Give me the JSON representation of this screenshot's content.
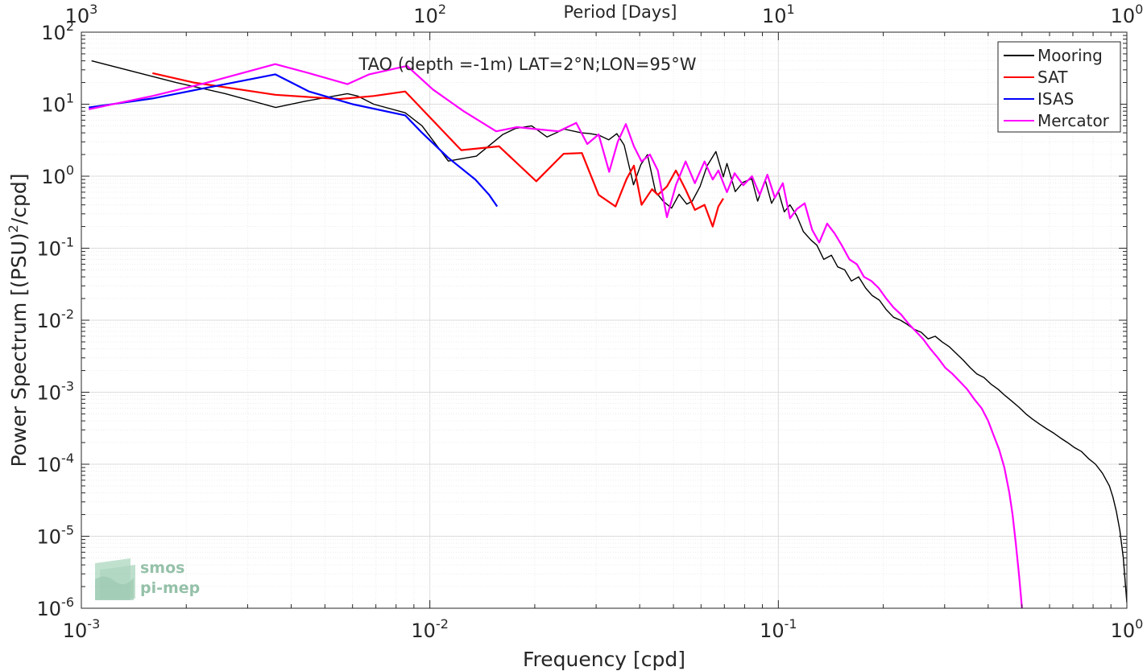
{
  "chart_data": {
    "type": "line",
    "title": "TAO (depth =-1m) LAT=2°N;LON=95°W",
    "xlabel": "Frequency [cpd]",
    "ylabel_main": "Power Spectrum [(PSU)",
    "ylabel_sup": "2",
    "ylabel_end": "/cpd]",
    "top_axis_label": "Period [Days]",
    "x_scale": "log",
    "y_scale": "log",
    "xlim": [
      0.001,
      1
    ],
    "ylim": [
      1e-06,
      100
    ],
    "grid": true,
    "legend_position": "top-right",
    "x_ticks": [
      {
        "value": 0.001,
        "base": "10",
        "exp": "-3"
      },
      {
        "value": 0.01,
        "base": "10",
        "exp": "-2"
      },
      {
        "value": 0.1,
        "base": "10",
        "exp": "-1"
      },
      {
        "value": 1,
        "base": "10",
        "exp": "0"
      }
    ],
    "y_ticks": [
      {
        "value": 1e-06,
        "base": "10",
        "exp": "-6"
      },
      {
        "value": 1e-05,
        "base": "10",
        "exp": "-5"
      },
      {
        "value": 0.0001,
        "base": "10",
        "exp": "-4"
      },
      {
        "value": 0.001,
        "base": "10",
        "exp": "-3"
      },
      {
        "value": 0.01,
        "base": "10",
        "exp": "-2"
      },
      {
        "value": 0.1,
        "base": "10",
        "exp": "-1"
      },
      {
        "value": 1,
        "base": "10",
        "exp": "0"
      },
      {
        "value": 10,
        "base": "10",
        "exp": "1"
      },
      {
        "value": 100,
        "base": "10",
        "exp": "2"
      }
    ],
    "top_ticks": [
      {
        "value": 0.001,
        "base": "10",
        "exp": "3"
      },
      {
        "value": 0.01,
        "base": "10",
        "exp": "2"
      },
      {
        "value": 0.1,
        "base": "10",
        "exp": "1"
      },
      {
        "value": 1,
        "base": "10",
        "exp": "0"
      }
    ],
    "series": [
      {
        "name": "Mooring",
        "color": "#000000",
        "x": [
          0.00107,
          0.00187,
          0.00259,
          0.00361,
          0.00439,
          0.0058,
          0.0062,
          0.0069,
          0.0085,
          0.0095,
          0.0113,
          0.0136,
          0.0162,
          0.0176,
          0.0196,
          0.0217,
          0.0243,
          0.0272,
          0.0288,
          0.0306,
          0.0326,
          0.0344,
          0.0361,
          0.0384,
          0.0403,
          0.0421,
          0.0444,
          0.0467,
          0.0494,
          0.0519,
          0.0546,
          0.0566,
          0.0596,
          0.0625,
          0.0662,
          0.0695,
          0.0712,
          0.0752,
          0.0791,
          0.0839,
          0.0872,
          0.0917,
          0.0956,
          0.1,
          0.104,
          0.108,
          0.113,
          0.118,
          0.124,
          0.129,
          0.135,
          0.142,
          0.148,
          0.155,
          0.162,
          0.17,
          0.178,
          0.186,
          0.195,
          0.204,
          0.214,
          0.224,
          0.234,
          0.245,
          0.257,
          0.269,
          0.282,
          0.295,
          0.309,
          0.323,
          0.339,
          0.355,
          0.371,
          0.389,
          0.407,
          0.427,
          0.447,
          0.468,
          0.49,
          0.513,
          0.537,
          0.562,
          0.589,
          0.617,
          0.646,
          0.676,
          0.708,
          0.741,
          0.776,
          0.813,
          0.851,
          0.891,
          0.912,
          0.933,
          0.955,
          0.977,
          0.988,
          1.0
        ],
        "y": [
          40,
          20,
          14,
          9,
          11,
          14,
          13,
          10,
          7.6,
          5,
          1.62,
          1.9,
          3.8,
          4.6,
          5.0,
          3.5,
          4.5,
          4.0,
          3.9,
          3.7,
          3.2,
          3.9,
          2.7,
          0.76,
          1.45,
          2.0,
          0.61,
          0.45,
          0.36,
          0.56,
          0.41,
          0.45,
          0.72,
          1.4,
          2.2,
          0.98,
          1.5,
          0.61,
          0.82,
          0.92,
          0.45,
          0.88,
          0.42,
          0.62,
          0.32,
          0.4,
          0.28,
          0.17,
          0.13,
          0.11,
          0.07,
          0.08,
          0.055,
          0.05,
          0.035,
          0.04,
          0.028,
          0.022,
          0.019,
          0.014,
          0.011,
          0.01,
          0.0088,
          0.0075,
          0.0068,
          0.0055,
          0.006,
          0.005,
          0.0043,
          0.0035,
          0.0028,
          0.0022,
          0.0018,
          0.0016,
          0.0013,
          0.0011,
          0.0009,
          0.00075,
          0.00062,
          0.0005,
          0.00042,
          0.00036,
          0.00031,
          0.00027,
          0.00023,
          0.0002,
          0.00017,
          0.00015,
          0.00012,
          0.0001,
          7.5e-05,
          5e-05,
          3.5e-05,
          2.2e-05,
          1.2e-05,
          5e-06,
          2.5e-06,
          1.2e-06
        ]
      },
      {
        "name": "SAT",
        "color": "#ff0000",
        "x": [
          0.0016,
          0.0021,
          0.0036,
          0.0055,
          0.0069,
          0.0085,
          0.0123,
          0.0158,
          0.0202,
          0.0242,
          0.0273,
          0.0305,
          0.0341,
          0.0367,
          0.0385,
          0.0405,
          0.0434,
          0.0451,
          0.0479,
          0.0508,
          0.0542,
          0.0576,
          0.0614,
          0.0648,
          0.0673,
          0.0695
        ],
        "y": [
          27,
          20,
          13.5,
          11.8,
          13,
          15,
          2.3,
          2.6,
          0.85,
          2.05,
          2.1,
          0.55,
          0.38,
          0.92,
          1.4,
          0.4,
          0.66,
          0.55,
          0.72,
          1.2,
          0.65,
          0.34,
          0.4,
          0.2,
          0.38,
          0.49
        ]
      },
      {
        "name": "ISAS",
        "color": "#0000ff",
        "x": [
          0.00105,
          0.0016,
          0.0023,
          0.0036,
          0.0045,
          0.006,
          0.0085,
          0.0095,
          0.0113,
          0.0135,
          0.0148,
          0.0156
        ],
        "y": [
          9,
          12,
          17,
          26,
          15,
          10,
          7,
          4,
          1.8,
          0.9,
          0.55,
          0.38
        ]
      },
      {
        "name": "Mercator",
        "color": "#ff00ff",
        "x": [
          0.00105,
          0.0016,
          0.0023,
          0.0036,
          0.0045,
          0.0058,
          0.0067,
          0.0086,
          0.0102,
          0.0125,
          0.0155,
          0.0178,
          0.0202,
          0.0234,
          0.0263,
          0.0283,
          0.0305,
          0.0327,
          0.0346,
          0.0365,
          0.0385,
          0.0405,
          0.0428,
          0.0451,
          0.0479,
          0.0508,
          0.0542,
          0.0576,
          0.0614,
          0.0648,
          0.0673,
          0.0712,
          0.0749,
          0.0793,
          0.084,
          0.0884,
          0.093,
          0.0977,
          0.103,
          0.108,
          0.113,
          0.119,
          0.125,
          0.131,
          0.138,
          0.145,
          0.152,
          0.16,
          0.168,
          0.176,
          0.185,
          0.194,
          0.204,
          0.214,
          0.225,
          0.236,
          0.248,
          0.26,
          0.273,
          0.287,
          0.301,
          0.316,
          0.332,
          0.348,
          0.365,
          0.383,
          0.4,
          0.415,
          0.43,
          0.445,
          0.46,
          0.47,
          0.48,
          0.49,
          0.5
        ],
        "y": [
          8.5,
          13,
          20,
          36,
          27,
          19,
          26,
          34,
          16,
          8,
          4.2,
          4.8,
          4.5,
          4.2,
          5.5,
          2.8,
          3.8,
          1.15,
          3.0,
          5.3,
          2.6,
          1.6,
          2.0,
          1.2,
          0.27,
          0.75,
          1.6,
          0.8,
          1.6,
          0.9,
          1.2,
          0.6,
          1.1,
          0.75,
          1.0,
          0.55,
          1.05,
          0.5,
          0.8,
          0.26,
          0.35,
          0.42,
          0.18,
          0.12,
          0.22,
          0.16,
          0.11,
          0.07,
          0.06,
          0.04,
          0.035,
          0.028,
          0.02,
          0.015,
          0.012,
          0.009,
          0.007,
          0.0055,
          0.004,
          0.003,
          0.0022,
          0.0018,
          0.0014,
          0.0011,
          0.0008,
          0.0006,
          0.0004,
          0.00025,
          0.00016,
          9e-05,
          4e-05,
          2e-05,
          8e-06,
          3e-06,
          1e-06
        ]
      }
    ]
  },
  "logo": {
    "line1": "smos",
    "line2": "pi-mep"
  }
}
